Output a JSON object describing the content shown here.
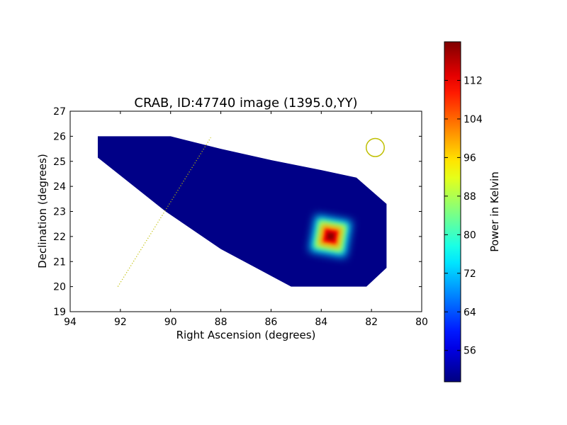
{
  "chart_data": {
    "type": "heatmap",
    "title": "CRAB, ID:47740 image (1395.0,YY)",
    "xlabel": "Right Ascension (degrees)",
    "ylabel": "Declination (degrees)",
    "xlim": [
      94,
      80
    ],
    "ylim": [
      19,
      27
    ],
    "x_ticks": [
      94,
      92,
      90,
      88,
      86,
      84,
      82,
      80
    ],
    "y_ticks": [
      19,
      20,
      21,
      22,
      23,
      24,
      25,
      26,
      27
    ],
    "x_axis_reversed": true,
    "grid": false,
    "colormap": "jet",
    "colorbar": {
      "label": "Power in Kelvin",
      "min": 49.5,
      "max": 120,
      "ticks": [
        56,
        64,
        72,
        80,
        88,
        96,
        104,
        112
      ]
    },
    "coverage_polygon": [
      [
        92.9,
        26.0
      ],
      [
        90.0,
        26.0
      ],
      [
        88.0,
        25.5
      ],
      [
        86.0,
        25.05
      ],
      [
        84.0,
        24.65
      ],
      [
        82.6,
        24.35
      ],
      [
        81.4,
        23.3
      ],
      [
        81.4,
        20.75
      ],
      [
        82.2,
        20.0
      ],
      [
        85.2,
        20.0
      ],
      [
        88.0,
        21.5
      ],
      [
        90.2,
        23.0
      ],
      [
        92.9,
        25.15
      ]
    ],
    "background_level": 50,
    "sources": [
      {
        "ra": 83.63,
        "dec": 22.01,
        "peak": 119,
        "shape": "square"
      }
    ],
    "annotations": {
      "beam_circle": {
        "ra": 81.85,
        "dec": 25.55,
        "radius_deg": 0.36,
        "color": "#bfbf00"
      },
      "dotted_track": {
        "points": [
          [
            92.1,
            20.0
          ],
          [
            88.4,
            25.95
          ]
        ],
        "color": "#bfbf00"
      }
    }
  }
}
